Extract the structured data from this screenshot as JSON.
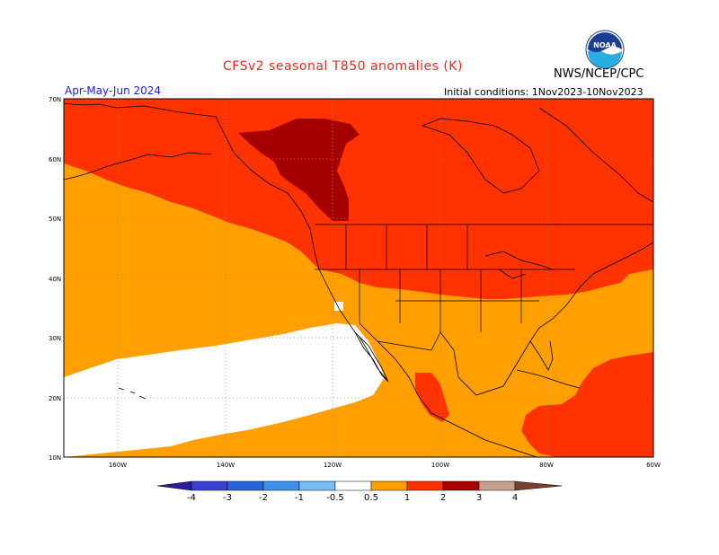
{
  "title": "CFSv2 seasonal T850 anomalies (K)",
  "agency": "NWS/NCEP/CPC",
  "season": "Apr-May-Jun 2024",
  "initial_conditions": "Initial conditions: 1Nov2023-10Nov2023",
  "logo_text": "NOAA",
  "lat_labels": [
    "70N",
    "60N",
    "50N",
    "40N",
    "30N",
    "20N",
    "10N"
  ],
  "lon_labels": [
    "160W",
    "140W",
    "120W",
    "100W",
    "80W",
    "60W"
  ],
  "colorbar": {
    "labels": [
      "-4",
      "-3",
      "-2",
      "-1",
      "-0.5",
      "0.5",
      "1",
      "2",
      "3",
      "4"
    ],
    "colors": [
      "#2c1ca0",
      "#3a3fd0",
      "#2a63d8",
      "#3a91e8",
      "#7abcf4",
      "#ffffff",
      "#ffa000",
      "#ff3200",
      "#a50000",
      "#c8a090",
      "#7a4030"
    ]
  },
  "legend_colors": {
    "0.5-1": "#ffa000",
    "1-2": "#ff3200",
    "2-3": "#a50000",
    "neutral": "#ffffff"
  }
}
